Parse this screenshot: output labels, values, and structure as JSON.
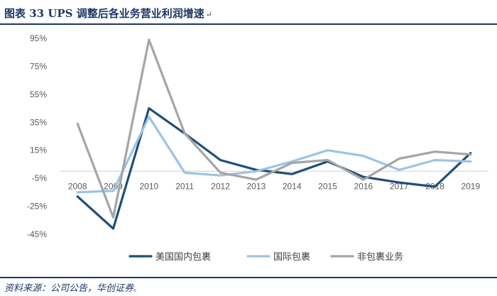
{
  "figure": {
    "title": "图表 33  UPS 调整后各业务营业利润增速",
    "title_mark": "↵",
    "source": "资料来源：公司公告，华创证券",
    "source_mark": "。"
  },
  "colors": {
    "header_rule": "#1f3864",
    "axis": "#d9d9d9",
    "series": [
      "#1f4e79",
      "#9dc3e6",
      "#a5a5a5"
    ]
  },
  "chart_data": {
    "type": "line",
    "x": [
      "2008",
      "2009",
      "2010",
      "2011",
      "2012",
      "2013",
      "2014",
      "2015",
      "2016",
      "2017",
      "2018",
      "2019"
    ],
    "y_ticks": [
      "95%",
      "75%",
      "55%",
      "35%",
      "15%",
      "-5%",
      "-25%",
      "-45%"
    ],
    "ylim": [
      -45,
      95
    ],
    "y_tick_values": [
      95,
      75,
      55,
      35,
      15,
      -5,
      -25,
      -45
    ],
    "x_axis_crosses_at": 0,
    "grid": false,
    "legend_position": "bottom",
    "series": [
      {
        "name": "美国国内包裹",
        "color": "#1f4e79",
        "values": [
          -18,
          -41,
          45,
          27,
          8,
          1,
          -2,
          7,
          -4,
          -8,
          -11,
          13
        ]
      },
      {
        "name": "国际包裹",
        "color": "#9dc3e6",
        "values": [
          -15,
          -14,
          39,
          -1,
          -3,
          0,
          7,
          15,
          11,
          1,
          8,
          7
        ]
      },
      {
        "name": "非包裹业务",
        "color": "#a5a5a5",
        "values": [
          34,
          -33,
          94,
          27,
          -1,
          -6,
          6,
          8,
          -6,
          9,
          14,
          12
        ]
      }
    ]
  }
}
